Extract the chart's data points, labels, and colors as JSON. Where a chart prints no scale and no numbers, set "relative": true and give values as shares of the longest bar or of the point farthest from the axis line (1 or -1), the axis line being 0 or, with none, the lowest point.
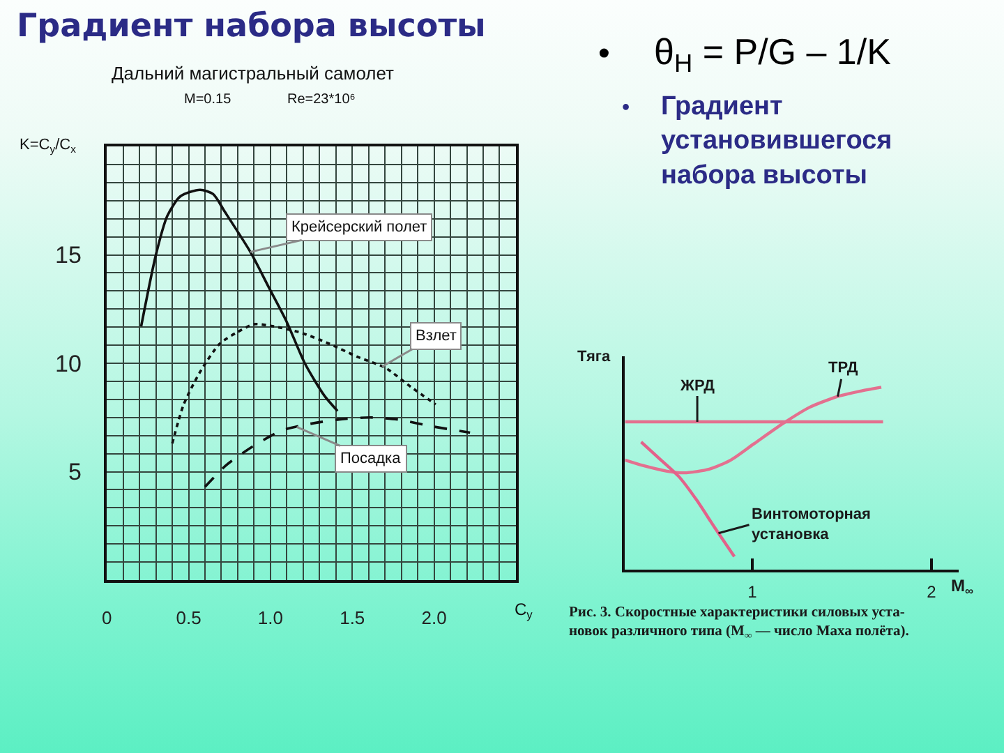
{
  "chart_data": [
    {
      "type": "other",
      "title": "Градиент набора высоты",
      "annotations": [
        "•",
        "θ$_{Н}$ = P/G – 1/K",
        "•",
        "Градиент\nустановившегося\nнабора высоты"
      ]
    },
    {
      "type": "line",
      "title": "Дальний магистральный самолет",
      "subtitle": "M=0.15",
      "annotations": [
        "Re=23*10⁶"
      ],
      "xlabel": "C$_{y}$",
      "ylabel": "K=C$_{y}$/C$_{x}$",
      "xlim": [
        0,
        2.5
      ],
      "ylim": [
        0,
        20
      ],
      "xticks": [
        0,
        {
          "value": 0.1,
          "label": null
        },
        {
          "value": 0.2,
          "label": null
        },
        {
          "value": 0.3,
          "label": null
        },
        {
          "value": 0.4,
          "label": null
        },
        0.5,
        {
          "value": 0.6,
          "label": null
        },
        {
          "value": 0.7,
          "label": null
        },
        {
          "value": 0.8,
          "label": null
        },
        {
          "value": 0.9,
          "label": null
        },
        {
          "value": 1,
          "label": "1.0"
        },
        {
          "value": 1.1,
          "label": null
        },
        {
          "value": 1.2,
          "label": null
        },
        {
          "value": 1.3,
          "label": null
        },
        {
          "value": 1.4,
          "label": null
        },
        1.5,
        {
          "value": 1.6,
          "label": null
        },
        {
          "value": 1.7,
          "label": null
        },
        {
          "value": 1.8,
          "label": null
        },
        {
          "value": 1.9,
          "label": null
        },
        {
          "value": 2,
          "label": "2.0"
        },
        {
          "value": 2.1,
          "label": null
        },
        {
          "value": 2.2,
          "label": null
        },
        {
          "value": 2.3,
          "label": null
        },
        {
          "value": 2.4,
          "label": null
        },
        {
          "value": 2.5,
          "label": null
        }
      ],
      "yticks": [
        {
          "value": 0,
          "label": null
        },
        {
          "value": 0.83,
          "label": null
        },
        {
          "value": 1.67,
          "label": null
        },
        {
          "value": 2.5,
          "label": null
        },
        {
          "value": 3.33,
          "label": null
        },
        {
          "value": 4.17,
          "label": null
        },
        5,
        {
          "value": 5.83,
          "label": null
        },
        {
          "value": 6.67,
          "label": null
        },
        {
          "value": 7.5,
          "label": null
        },
        {
          "value": 8.33,
          "label": null
        },
        {
          "value": 9.17,
          "label": null
        },
        10,
        {
          "value": 10.83,
          "label": null
        },
        {
          "value": 11.67,
          "label": null
        },
        {
          "value": 12.5,
          "label": null
        },
        {
          "value": 13.33,
          "label": null
        },
        {
          "value": 14.17,
          "label": null
        },
        15,
        {
          "value": 15.83,
          "label": null
        },
        {
          "value": 16.67,
          "label": null
        },
        {
          "value": 17.5,
          "label": null
        },
        {
          "value": 18.33,
          "label": null
        },
        {
          "value": 19.17,
          "label": null
        },
        {
          "value": 20,
          "label": null
        }
      ],
      "grid": true,
      "series": [
        {
          "name": "Крейсерский полет",
          "color": "#111111",
          "line_style": "solid",
          "x": [
            0.21,
            0.3,
            0.37,
            0.45,
            0.57,
            0.65,
            0.72,
            0.88,
            0.99,
            1.1,
            1.21,
            1.33,
            1.41
          ],
          "values": [
            11.7,
            15.0,
            16.8,
            17.7,
            18.0,
            17.8,
            17.0,
            15.1,
            13.5,
            11.9,
            10.0,
            8.5,
            7.8
          ]
        },
        {
          "name": "Взлет",
          "color": "#111111",
          "line_style": "dotted",
          "x": [
            0.4,
            0.47,
            0.57,
            0.69,
            0.79,
            0.9,
            1.02,
            1.19,
            1.36,
            1.53,
            1.7,
            1.86,
            2.01
          ],
          "values": [
            6.3,
            8.1,
            9.6,
            10.9,
            11.4,
            11.8,
            11.7,
            11.4,
            10.9,
            10.3,
            9.8,
            8.9,
            8.1
          ]
        },
        {
          "name": "Посадка",
          "color": "#111111",
          "line_style": "dashed",
          "x": [
            0.6,
            0.73,
            0.9,
            1.07,
            1.24,
            1.41,
            1.61,
            1.78,
            1.98,
            2.22
          ],
          "values": [
            4.3,
            5.3,
            6.2,
            6.9,
            7.2,
            7.4,
            7.5,
            7.4,
            7.1,
            6.8
          ]
        }
      ]
    },
    {
      "type": "line",
      "relative": true,
      "ylabel": "Тяга",
      "xlabel": "M$_{∞}$",
      "xlim": [
        0.29,
        2.15
      ],
      "xticks": [
        1,
        2
      ],
      "annotations": [
        "Рис. 3. Скоростные характеристики силовых уста-\nновок различного типа (M$_{∞}$ — число Маха полёта)."
      ],
      "series": [
        {
          "name": "ЖРД",
          "color": "#e3708f",
          "x": [
            0.29,
            1.73
          ],
          "values": [
            0.81,
            0.81
          ]
        },
        {
          "name": "ТРД",
          "color": "#e3708f",
          "x": [
            0.29,
            0.39,
            0.52,
            0.62,
            0.76,
            0.88,
            1.01,
            1.17,
            1.32,
            1.48,
            1.61,
            1.72
          ],
          "values": [
            0.6,
            0.57,
            0.54,
            0.53,
            0.55,
            0.6,
            0.69,
            0.8,
            0.89,
            0.95,
            0.98,
            1.0
          ]
        },
        {
          "name": "Винтомоторная установка",
          "color": "#e3628a",
          "x": [
            0.38,
            0.48,
            0.59,
            0.69,
            0.79,
            0.9
          ],
          "values": [
            0.7,
            0.61,
            0.51,
            0.38,
            0.23,
            0.07
          ]
        }
      ]
    }
  ]
}
